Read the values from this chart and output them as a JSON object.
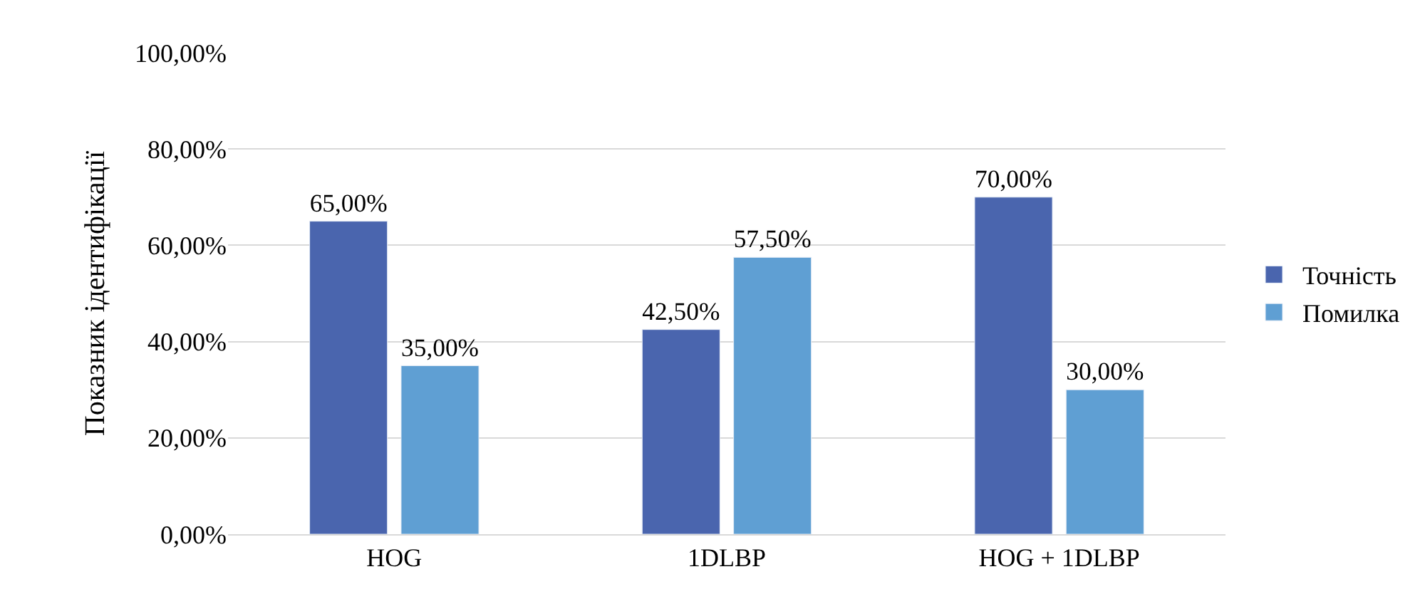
{
  "chart_data": {
    "type": "bar",
    "ylabel": "Показник ідентифікації",
    "categories": [
      "HOG",
      "1DLBP",
      "HOG + 1DLBP"
    ],
    "series": [
      {
        "name": "Точність",
        "color": "#4a65ae",
        "values": [
          65,
          42.5,
          70
        ],
        "value_labels": [
          "65,00%",
          "42,50%",
          "70,00%"
        ]
      },
      {
        "name": "Помилка",
        "color": "#5f9fd3",
        "values": [
          35,
          57.5,
          30
        ],
        "value_labels": [
          "35,00%",
          "57,50%",
          "30,00%"
        ]
      }
    ],
    "ylim": [
      0,
      100
    ],
    "yticks": [
      {
        "value": 0,
        "label": "0,00%"
      },
      {
        "value": 20,
        "label": "20,00%"
      },
      {
        "value": 40,
        "label": "40,00%"
      },
      {
        "value": 60,
        "label": "60,00%"
      },
      {
        "value": 80,
        "label": "80,00%"
      },
      {
        "value": 100,
        "label": "100,00%"
      }
    ],
    "grid": "y",
    "legend": "right"
  }
}
